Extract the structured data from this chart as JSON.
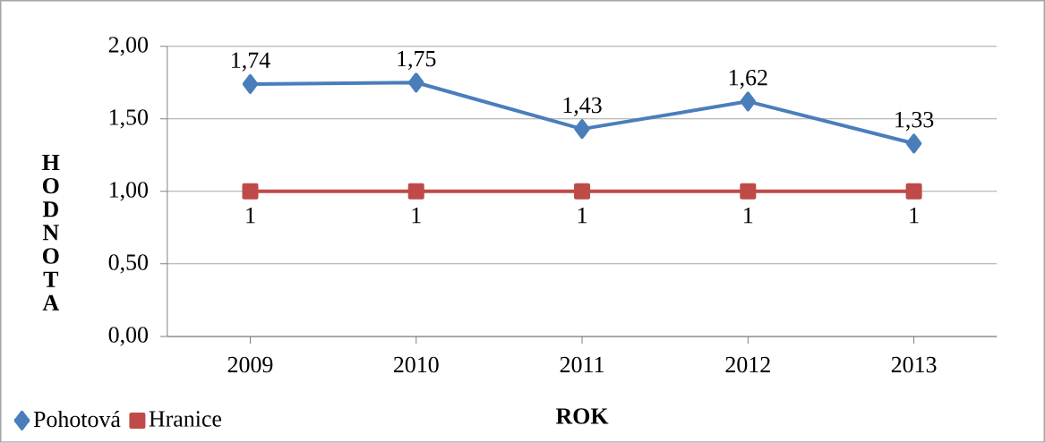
{
  "chart_data": {
    "type": "line",
    "xlabel": "ROK",
    "ylabel": "HODNOTA",
    "categories": [
      "2009",
      "2010",
      "2011",
      "2012",
      "2013"
    ],
    "series": [
      {
        "name": "Pohotová",
        "color": "#4a7ebb",
        "marker": "diamond",
        "values": [
          1.74,
          1.75,
          1.43,
          1.62,
          1.33
        ],
        "value_labels": [
          "1,74",
          "1,75",
          "1,43",
          "1,62",
          "1,33"
        ]
      },
      {
        "name": "Hranice",
        "color": "#be4b48",
        "marker": "square",
        "values": [
          1,
          1,
          1,
          1,
          1
        ],
        "value_labels": [
          "1",
          "1",
          "1",
          "1",
          "1"
        ]
      }
    ],
    "ylim": [
      0,
      2
    ],
    "yticks": [
      {
        "value": 0,
        "label": "0,00"
      },
      {
        "value": 0.5,
        "label": "0,50"
      },
      {
        "value": 1,
        "label": "1,00"
      },
      {
        "value": 1.5,
        "label": "1,50"
      },
      {
        "value": 2,
        "label": "2,00"
      }
    ],
    "grid": "y",
    "legend": "bottom left"
  }
}
